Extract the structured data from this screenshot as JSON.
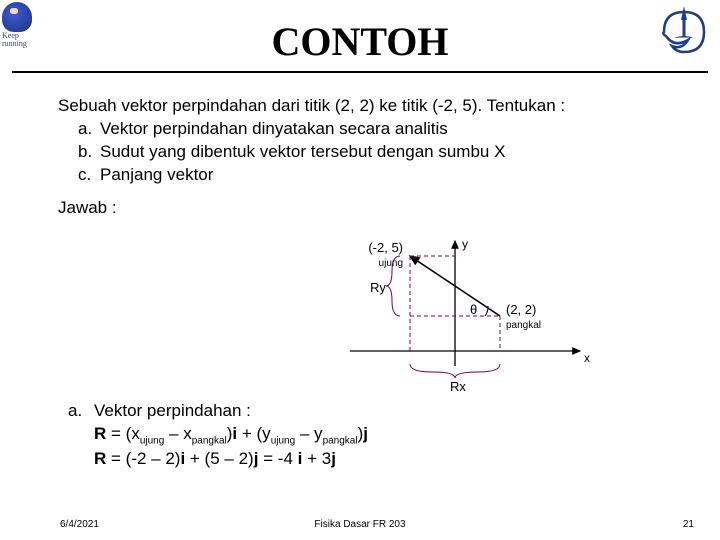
{
  "logos": {
    "left_caption": "Keep\nrunning"
  },
  "title": "CONTOH",
  "problem": {
    "intro": "Sebuah vektor perpindahan dari titik (2, 2) ke titik (-2, 5). Tentukan :",
    "items": [
      {
        "label": "a.",
        "text": "Vektor perpindahan dinyatakan secara analitis"
      },
      {
        "label": "b.",
        "text": "Sudut yang dibentuk vektor tersebut dengan sumbu X"
      },
      {
        "label": "c.",
        "text": "Panjang vektor"
      }
    ],
    "jawab": "Jawab :"
  },
  "diagram": {
    "tip_label": "(-2, 5)",
    "tip_word": "ujung",
    "base_label": "(2, 2)",
    "base_word": "pangkal",
    "ry_label": "Ry",
    "rx_label": "Rx",
    "theta_label": "θ",
    "y_axis": "y",
    "x_axis": "x",
    "colors": {
      "axis": "#000000",
      "vector": "#000000",
      "dash": "#7a004d",
      "brace": "#7a004d"
    },
    "text_fontsize": 12
  },
  "answer": {
    "label": "a.",
    "line1": "Vektor perpindahan :",
    "line2_html": "<b>R</b> = (x<sub>ujung</sub> – x<sub>pangkal</sub>)<b>i</b> + (y<sub>ujung</sub> – y<sub>pangkal</sub>)<b>j</b>",
    "line3_html": "<b>R</b> = (-2 – 2)<b>i</b> + (5 – 2)<b>j</b> = -4 <b>i</b> + 3<b>j</b>"
  },
  "footer": {
    "date": "6/4/2021",
    "center": "Fisika Dasar FR 203",
    "page": "21"
  }
}
